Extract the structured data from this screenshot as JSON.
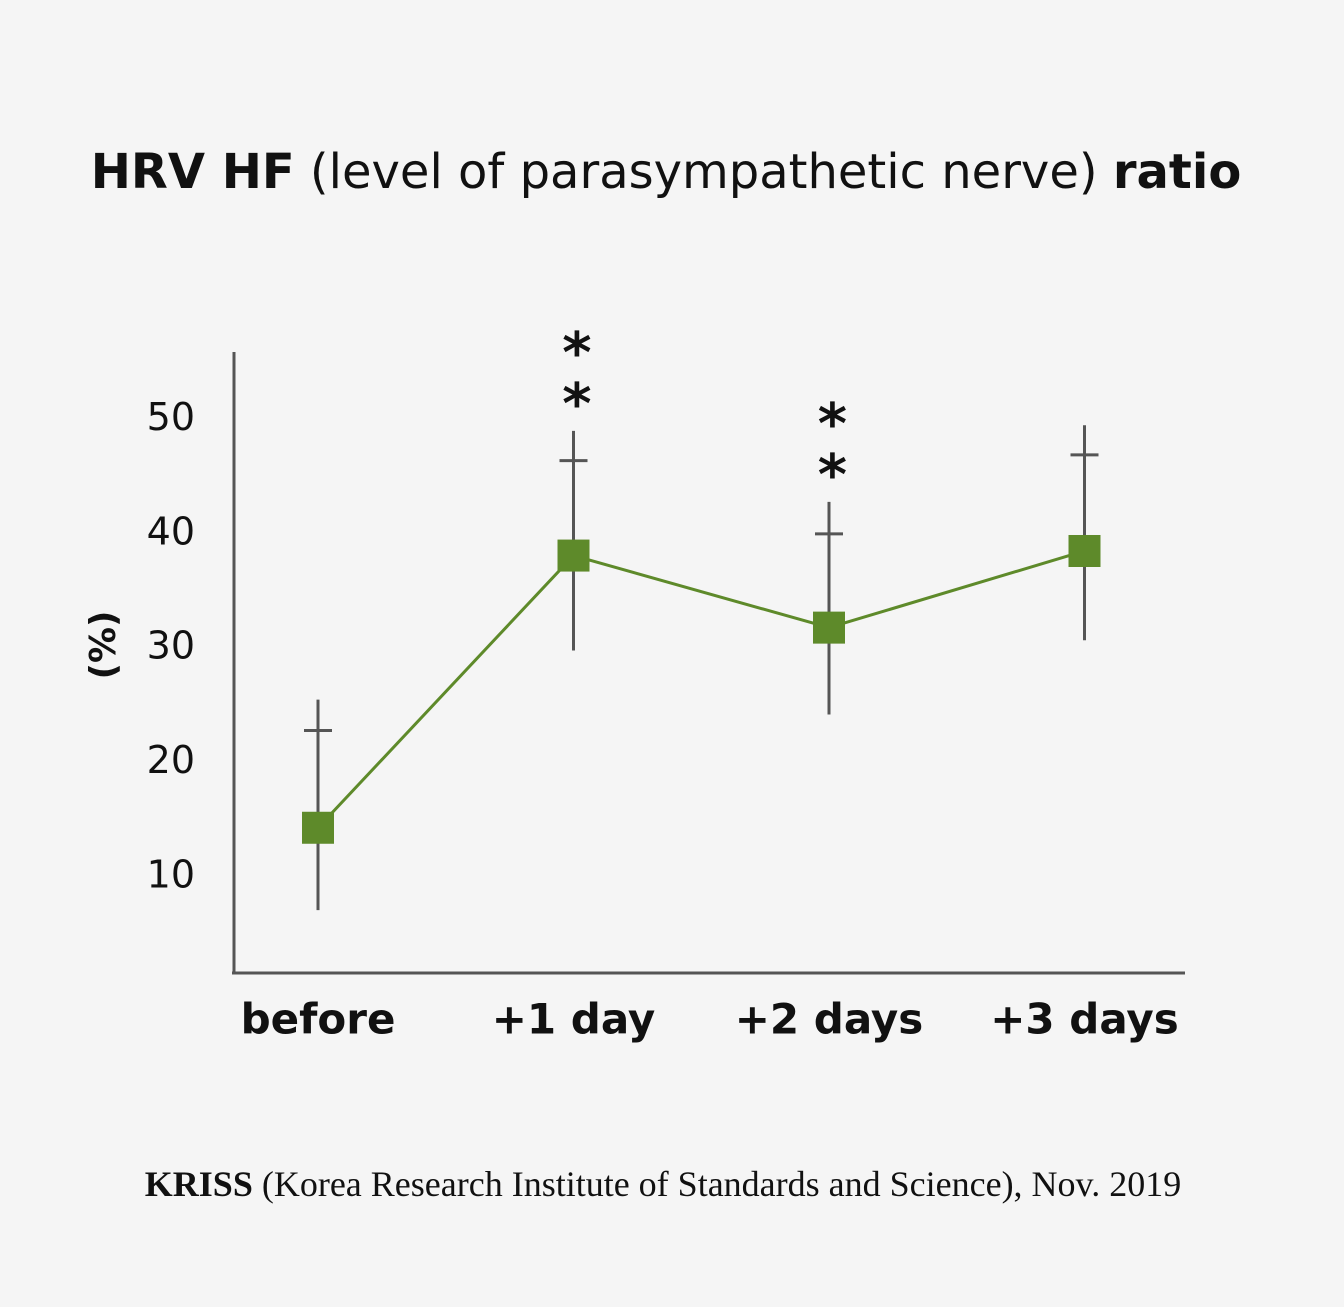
{
  "chart_data": {
    "type": "line",
    "title": [
      "HRV HF",
      "(level of parasympathetic nerve)",
      "ratio"
    ],
    "y_label": "(%)",
    "categories": [
      "before",
      "+1 day",
      "+2 days",
      "+3 days"
    ],
    "category_colors": [
      "#a0a0a0",
      "#5b8a2a",
      "#5b8a2a",
      "#5b8a2a"
    ],
    "series": [
      {
        "color": "#5e8a2a",
        "values": [
          14.3,
          38.1,
          31.8,
          38.5
        ],
        "crossbar": [
          22.8,
          46.4,
          40.0,
          46.9
        ],
        "whisker_low": [
          7.1,
          29.8,
          24.2,
          30.7
        ],
        "whisker_high": [
          25.5,
          49.0,
          42.8,
          49.5
        ]
      }
    ],
    "error_color": "#555555",
    "significance": [
      null,
      "**",
      "**",
      null
    ],
    "ylim": [
      1.6,
      55.9
    ],
    "yticks": [
      10,
      20,
      30,
      40,
      50
    ],
    "source": [
      "KRISS",
      "(Korea Research Institute of Standards and Science), Nov. 2019"
    ]
  }
}
